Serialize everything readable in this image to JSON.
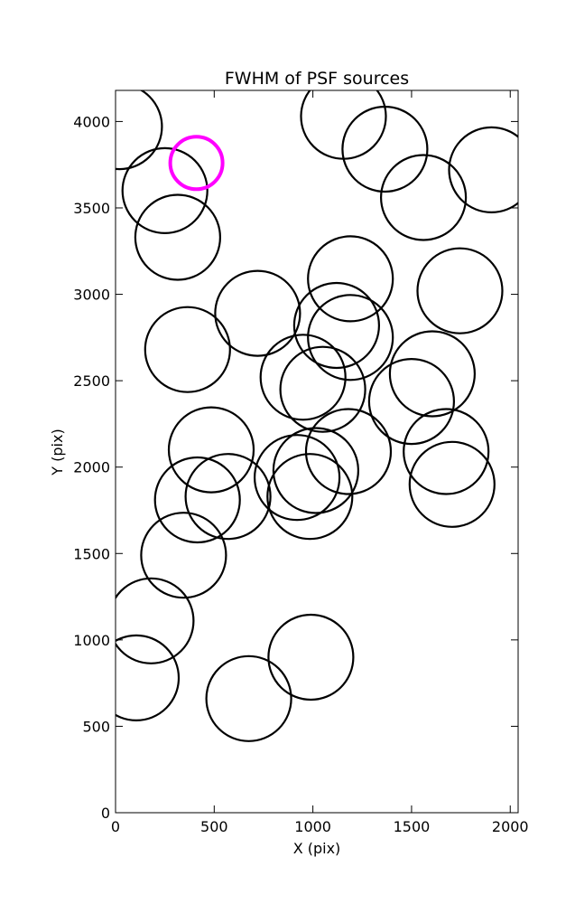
{
  "chart_data": {
    "type": "scatter",
    "title": "FWHM of PSF sources",
    "xlabel": "X (pix)",
    "ylabel": "Y (pix)",
    "xlim": [
      0,
      2040
    ],
    "ylim": [
      0,
      4180
    ],
    "xticks": [
      0,
      500,
      1000,
      1500,
      2000
    ],
    "yticks": [
      0,
      500,
      1000,
      1500,
      2000,
      2500,
      3000,
      3500,
      4000
    ],
    "grid": false,
    "marker": "open circle",
    "series": [
      {
        "color": "#000000",
        "points": [
          {
            "x": 20,
            "y": 3970
          },
          {
            "x": 250,
            "y": 3600
          },
          {
            "x": 315,
            "y": 3330
          },
          {
            "x": 1155,
            "y": 4030
          },
          {
            "x": 1365,
            "y": 3840
          },
          {
            "x": 1560,
            "y": 3560
          },
          {
            "x": 1905,
            "y": 3720
          },
          {
            "x": 1190,
            "y": 3090
          },
          {
            "x": 1745,
            "y": 3020
          },
          {
            "x": 720,
            "y": 2890
          },
          {
            "x": 1120,
            "y": 2820
          },
          {
            "x": 1190,
            "y": 2750
          },
          {
            "x": 365,
            "y": 2680
          },
          {
            "x": 1605,
            "y": 2540
          },
          {
            "x": 950,
            "y": 2520
          },
          {
            "x": 1500,
            "y": 2380
          },
          {
            "x": 1050,
            "y": 2450
          },
          {
            "x": 485,
            "y": 2100
          },
          {
            "x": 1180,
            "y": 2090
          },
          {
            "x": 1675,
            "y": 2090
          },
          {
            "x": 920,
            "y": 1940
          },
          {
            "x": 1015,
            "y": 1980
          },
          {
            "x": 1705,
            "y": 1900
          },
          {
            "x": 415,
            "y": 1810
          },
          {
            "x": 570,
            "y": 1830
          },
          {
            "x": 985,
            "y": 1830
          },
          {
            "x": 345,
            "y": 1490
          },
          {
            "x": 180,
            "y": 1110
          },
          {
            "x": 105,
            "y": 780
          },
          {
            "x": 675,
            "y": 660
          },
          {
            "x": 990,
            "y": 900
          }
        ]
      },
      {
        "color": "#ff00ff",
        "points": [
          {
            "x": 410,
            "y": 3760
          }
        ]
      }
    ]
  }
}
